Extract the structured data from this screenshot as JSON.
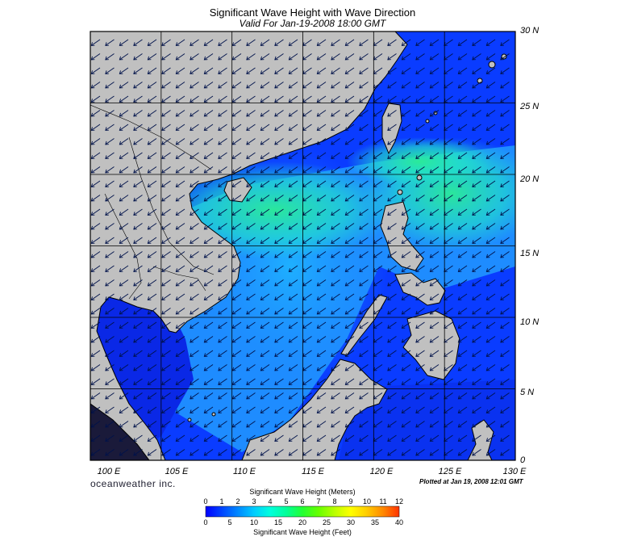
{
  "header": {
    "title": "Significant Wave Height with Wave Direction",
    "subtitle": "Valid For Jan-19-2008 18:00 GMT"
  },
  "map": {
    "lon_range": [
      100,
      130
    ],
    "lat_range": [
      0,
      30
    ],
    "lat_labels": [
      "30 N",
      "25 N",
      "20 N",
      "15 N",
      "10 N",
      "5 N",
      "0"
    ],
    "lon_labels": [
      "100 E",
      "105 E",
      "110 E",
      "115 E",
      "120 E",
      "125 E",
      "130 E"
    ],
    "colors": {
      "land": "#c0c0c0",
      "coast": "#000000",
      "sea_low": "#0a3cff",
      "sea_mid": "#1e8cff",
      "sea_high": "#22e6c8",
      "sea_peak": "#2cf090",
      "arrow": "#00124a",
      "grid": "#000000"
    },
    "wave_direction": "from northeast"
  },
  "footer": {
    "brand": "oceanweather inc.",
    "plotted": "Plotted at Jan 19, 2008 12:01 GMT"
  },
  "colorbar": {
    "title_meters": "Significant Wave Height (Meters)",
    "title_feet": "Significant Wave Height (Feet)",
    "meters_ticks": [
      "0",
      "1",
      "2",
      "3",
      "4",
      "5",
      "6",
      "7",
      "8",
      "9",
      "10",
      "11",
      "12"
    ],
    "feet_ticks": [
      "0",
      "5",
      "10",
      "15",
      "20",
      "25",
      "30",
      "35",
      "40"
    ],
    "range_m": [
      0,
      12
    ],
    "colors": [
      "#0000ff",
      "#0044ff",
      "#0088ff",
      "#00ccff",
      "#00ffdd",
      "#00ff99",
      "#22ff33",
      "#66ff00",
      "#bbff00",
      "#ffff00",
      "#ffcc00",
      "#ff8800",
      "#ff3300"
    ]
  }
}
